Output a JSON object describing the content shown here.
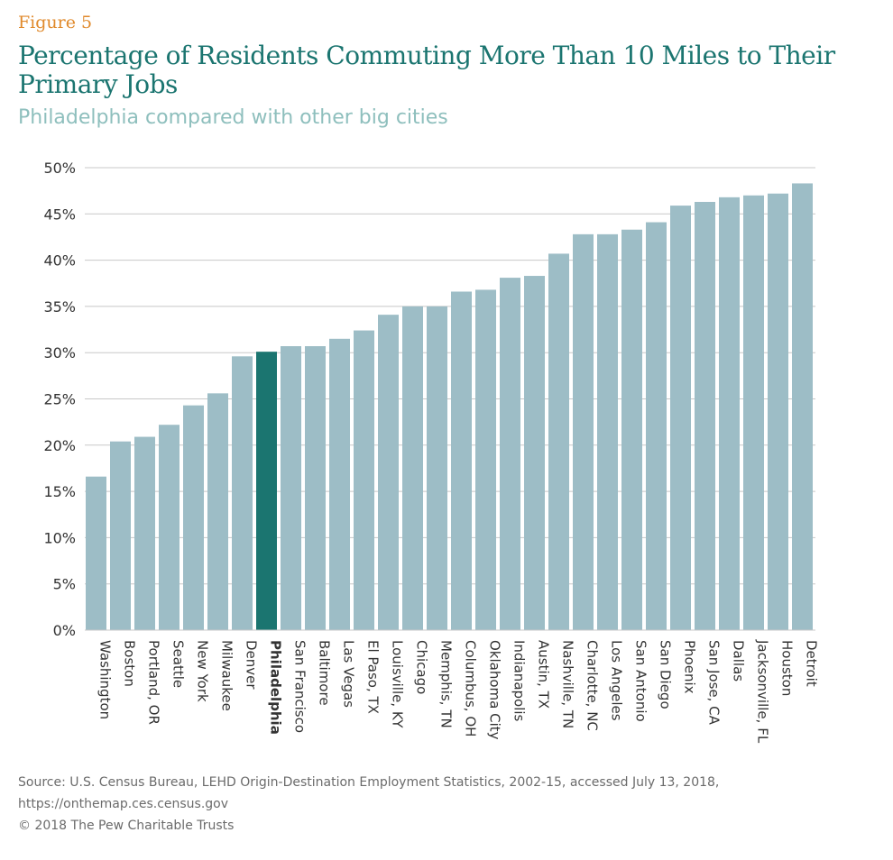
{
  "figure_label": "Figure 5",
  "title": "Percentage of Residents Commuting More Than 10 Miles to Their Primary Jobs",
  "subtitle": "Philadelphia compared with other big cities",
  "source_line1": "Source: U.S. Census Bureau, LEHD Origin-Destination Employment Statistics, 2002-15, accessed July 13, 2018,",
  "source_line2": "https://onthemap.ces.census.gov",
  "copyright": "© 2018 The Pew Charitable Trusts",
  "colors": {
    "bar": "#9dbdc6",
    "highlight": "#1b7570",
    "grid": "#c8c8c8",
    "text": "#333333"
  },
  "chart_data": {
    "type": "bar",
    "categories": [
      "Washington",
      "Boston",
      "Portland, OR",
      "Seattle",
      "New York",
      "Milwaukee",
      "Denver",
      "Philadelphia",
      "San Francisco",
      "Baltimore",
      "Las Vegas",
      "El Paso, TX",
      "Louisville, KY",
      "Chicago",
      "Memphis, TN",
      "Columbus, OH",
      "Oklahoma City",
      "Indianapolis",
      "Austin, TX",
      "Nashville, TN",
      "Charlotte, NC",
      "Los Angeles",
      "San Antonio",
      "San Diego",
      "Phoenix",
      "San Jose, CA",
      "Dallas",
      "Jacksonville, FL",
      "Houston",
      "Detroit"
    ],
    "values": [
      16.6,
      20.4,
      20.9,
      22.2,
      24.3,
      25.6,
      29.6,
      30.1,
      30.7,
      30.7,
      31.5,
      32.4,
      34.1,
      35.0,
      35.0,
      36.6,
      36.8,
      38.1,
      38.3,
      40.7,
      42.8,
      42.8,
      43.3,
      44.1,
      45.9,
      46.3,
      46.8,
      47.0,
      47.2,
      48.3
    ],
    "highlight": "Philadelphia",
    "yticks": [
      "0%",
      "5%",
      "10%",
      "15%",
      "20%",
      "25%",
      "30%",
      "35%",
      "40%",
      "45%",
      "50%"
    ],
    "ylim": [
      0,
      50
    ],
    "grid": true
  }
}
